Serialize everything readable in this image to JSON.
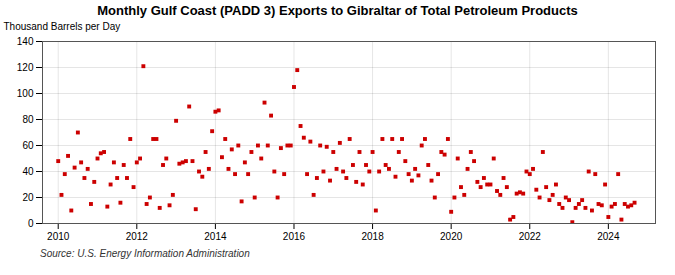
{
  "chart_data": {
    "type": "scatter",
    "title": "Monthly Gulf Coast (PADD 3) Exports to Gibraltar of Total Petroleum Products",
    "ylabel": "Thousand Barrels per Day",
    "source": "Source: U.S. Energy Information Administration",
    "color": "#cc0000",
    "marker": "square",
    "grid": true,
    "xlim": [
      2009.6,
      2025.2
    ],
    "ylim": [
      0,
      140
    ],
    "xticks": [
      2010,
      2012,
      2014,
      2016,
      2018,
      2020,
      2022,
      2024
    ],
    "yticks": [
      0,
      20,
      40,
      60,
      80,
      100,
      120,
      140
    ],
    "x": [
      2010.0,
      2010.083,
      2010.167,
      2010.25,
      2010.333,
      2010.417,
      2010.5,
      2010.583,
      2010.667,
      2010.75,
      2010.833,
      2010.917,
      2011.0,
      2011.083,
      2011.167,
      2011.25,
      2011.333,
      2011.417,
      2011.5,
      2011.583,
      2011.667,
      2011.75,
      2011.833,
      2011.917,
      2012.0,
      2012.083,
      2012.167,
      2012.25,
      2012.333,
      2012.417,
      2012.5,
      2012.583,
      2012.667,
      2012.75,
      2012.833,
      2012.917,
      2013.0,
      2013.083,
      2013.167,
      2013.25,
      2013.333,
      2013.417,
      2013.5,
      2013.583,
      2013.667,
      2013.75,
      2013.833,
      2013.917,
      2014.0,
      2014.083,
      2014.167,
      2014.25,
      2014.333,
      2014.417,
      2014.5,
      2014.583,
      2014.667,
      2014.75,
      2014.833,
      2014.917,
      2015.0,
      2015.083,
      2015.167,
      2015.25,
      2015.333,
      2015.417,
      2015.5,
      2015.583,
      2015.667,
      2015.75,
      2015.833,
      2015.917,
      2016.0,
      2016.083,
      2016.167,
      2016.25,
      2016.333,
      2016.417,
      2016.5,
      2016.583,
      2016.667,
      2016.75,
      2016.833,
      2016.917,
      2017.0,
      2017.083,
      2017.167,
      2017.25,
      2017.333,
      2017.417,
      2017.5,
      2017.583,
      2017.667,
      2017.75,
      2017.833,
      2017.917,
      2018.0,
      2018.083,
      2018.167,
      2018.25,
      2018.333,
      2018.417,
      2018.5,
      2018.583,
      2018.667,
      2018.75,
      2018.833,
      2018.917,
      2019.0,
      2019.083,
      2019.167,
      2019.25,
      2019.333,
      2019.417,
      2019.5,
      2019.583,
      2019.667,
      2019.75,
      2019.833,
      2019.917,
      2020.0,
      2020.083,
      2020.167,
      2020.25,
      2020.333,
      2020.417,
      2020.5,
      2020.583,
      2020.667,
      2020.75,
      2020.833,
      2020.917,
      2021.0,
      2021.083,
      2021.167,
      2021.25,
      2021.333,
      2021.417,
      2021.5,
      2021.583,
      2021.667,
      2021.75,
      2021.833,
      2021.917,
      2022.0,
      2022.083,
      2022.167,
      2022.25,
      2022.333,
      2022.417,
      2022.5,
      2022.583,
      2022.667,
      2022.75,
      2022.833,
      2022.917,
      2023.0,
      2023.083,
      2023.167,
      2023.25,
      2023.333,
      2023.417,
      2023.5,
      2023.583,
      2023.667,
      2023.75,
      2023.833,
      2023.917,
      2024.0,
      2024.083,
      2024.167,
      2024.25,
      2024.333,
      2024.417,
      2024.5,
      2024.583,
      2024.667
    ],
    "values": [
      48,
      22,
      38,
      52,
      10,
      43,
      70,
      47,
      35,
      42,
      15,
      32,
      50,
      54,
      55,
      13,
      30,
      47,
      35,
      16,
      45,
      35,
      65,
      28,
      47,
      50,
      121,
      15,
      20,
      65,
      65,
      12,
      45,
      50,
      14,
      22,
      79,
      46,
      47,
      48,
      90,
      48,
      11,
      40,
      36,
      55,
      42,
      71,
      86,
      87,
      51,
      65,
      42,
      57,
      38,
      60,
      17,
      47,
      38,
      55,
      20,
      60,
      50,
      93,
      60,
      83,
      40,
      20,
      58,
      38,
      60,
      60,
      105,
      118,
      75,
      66,
      38,
      63,
      22,
      35,
      60,
      40,
      59,
      33,
      55,
      42,
      62,
      40,
      35,
      65,
      45,
      32,
      55,
      30,
      45,
      40,
      55,
      10,
      40,
      65,
      45,
      42,
      65,
      36,
      55,
      65,
      48,
      38,
      33,
      42,
      37,
      60,
      65,
      45,
      33,
      20,
      38,
      55,
      53,
      65,
      9,
      20,
      50,
      28,
      22,
      42,
      55,
      48,
      32,
      28,
      35,
      30,
      30,
      50,
      25,
      22,
      35,
      28,
      3,
      5,
      23,
      24,
      23,
      40,
      38,
      42,
      26,
      20,
      55,
      28,
      18,
      22,
      30,
      15,
      12,
      20,
      18,
      1,
      12,
      15,
      18,
      12,
      40,
      10,
      38,
      15,
      14,
      30,
      5,
      13,
      15,
      38,
      3,
      15,
      13,
      14,
      16
    ]
  }
}
